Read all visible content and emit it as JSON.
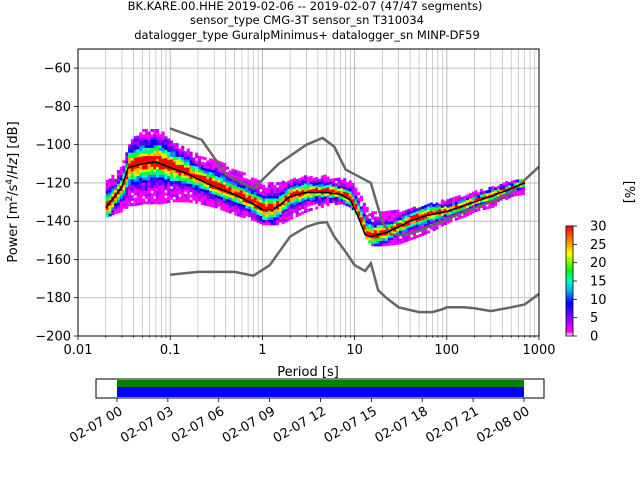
{
  "chart_data": {
    "type": "heatmap",
    "title_lines": [
      "BK.KARE.00.HHE   2019-02-06 -- 2019-02-07  (47/47 segments)",
      "sensor_type CMG-3T sensor_sn T310034",
      "datalogger_type GuralpMinimus+ datalogger_sn MINP-DF59"
    ],
    "xlabel": "Period [s]",
    "ylabel_html": "Power [m<tspan baseline-shift=\"super\" font-size=\"9\">2</tspan>/s<tspan baseline-shift=\"super\" font-size=\"9\">4</tspan>/<tspan font-style=\"italic\">Hz</tspan>] [dB]",
    "x_scale": "log",
    "xlim": [
      0.01,
      1000
    ],
    "ylim": [
      -200,
      -50
    ],
    "grid": true,
    "x_ticks": [
      {
        "v": 0.01,
        "label": "0.01"
      },
      {
        "v": 0.1,
        "label": "0.1"
      },
      {
        "v": 1,
        "label": "1"
      },
      {
        "v": 10,
        "label": "10"
      },
      {
        "v": 100,
        "label": "100"
      },
      {
        "v": 1000,
        "label": "1000"
      }
    ],
    "y_ticks": [
      {
        "v": -60,
        "label": "−60"
      },
      {
        "v": -80,
        "label": "−80"
      },
      {
        "v": -100,
        "label": "−100"
      },
      {
        "v": -120,
        "label": "−120"
      },
      {
        "v": -140,
        "label": "−140"
      },
      {
        "v": -160,
        "label": "−160"
      },
      {
        "v": -180,
        "label": "−180"
      },
      {
        "v": -200,
        "label": "−200"
      }
    ],
    "colorbar": {
      "label": "[%]",
      "range": [
        0,
        30
      ],
      "ticks": [
        {
          "v": 0,
          "label": "0"
        },
        {
          "v": 5,
          "label": "5"
        },
        {
          "v": 10,
          "label": "10"
        },
        {
          "v": 15,
          "label": "15"
        },
        {
          "v": 20,
          "label": "20"
        },
        {
          "v": 25,
          "label": "25"
        },
        {
          "v": 30,
          "label": "30"
        }
      ]
    },
    "noise_model_high": {
      "period": [
        0.1,
        0.22,
        0.4,
        0.8,
        1.5,
        3.0,
        4.5,
        6.0,
        8.0,
        10.0,
        15.0,
        20.0,
        25.0,
        35.0,
        50.0,
        100.0,
        200.0,
        300.0,
        500.0,
        1000.0
      ],
      "power": [
        -91.5,
        -97.5,
        -115.5,
        -123,
        -110,
        -100,
        -96.5,
        -101,
        -113,
        -115.5,
        -120,
        -140.5,
        -147,
        -147,
        -145,
        -139,
        -133,
        -130,
        -125,
        -111.5
      ]
    },
    "noise_model_low": {
      "period": [
        0.1,
        0.2,
        0.5,
        0.8,
        1.2,
        2.0,
        3.0,
        4.0,
        5.0,
        6.0,
        8.0,
        10.0,
        13.0,
        15.0,
        18.0,
        22.0,
        30.0,
        50.0,
        70.0,
        90.0,
        100.0,
        150.0,
        200.0,
        300.0,
        500.0,
        700.0,
        1000.0
      ],
      "power": [
        -168,
        -166.5,
        -166.5,
        -168.5,
        -163,
        -148,
        -143,
        -141,
        -140.5,
        -148,
        -156,
        -163,
        -166,
        -162,
        -176,
        -180,
        -185,
        -187.5,
        -187.5,
        -186,
        -185,
        -185,
        -185.5,
        -187,
        -185,
        -183.5,
        -178
      ]
    },
    "mode_curve": {
      "period": [
        0.02,
        0.025,
        0.03,
        0.035,
        0.05,
        0.07,
        0.1,
        0.15,
        0.2,
        0.3,
        0.5,
        0.8,
        1.0,
        1.3,
        1.6,
        2.0,
        3.0,
        5.0,
        7.0,
        9.0,
        11.0,
        13.0,
        15.0,
        18.0,
        22.0,
        30.0,
        40.0,
        60.0,
        100.0,
        150.0,
        200.0,
        300.0,
        500.0,
        700.0
      ],
      "power": [
        -133,
        -127,
        -122,
        -112,
        -110,
        -109,
        -112,
        -115,
        -118,
        -122,
        -126,
        -131,
        -134,
        -134,
        -131,
        -127,
        -125,
        -125,
        -126,
        -129,
        -138,
        -147,
        -148,
        -147,
        -146,
        -143,
        -140,
        -137,
        -135,
        -132,
        -130,
        -127,
        -123,
        -120
      ]
    },
    "heatmap_band": {
      "period": [
        0.02,
        0.025,
        0.03,
        0.035,
        0.04,
        0.05,
        0.06,
        0.08,
        0.1,
        0.15,
        0.2,
        0.3,
        0.5,
        0.8,
        1.0,
        1.5,
        2.0,
        3.0,
        5.0,
        7.0,
        9.0,
        11.0,
        13.0,
        15.0,
        20.0,
        30.0,
        50.0,
        70.0,
        100.0,
        150.0,
        200.0,
        300.0,
        500.0,
        700.0
      ],
      "upper": [
        -118,
        -115,
        -110,
        -100,
        -96,
        -93,
        -92,
        -94,
        -99,
        -103,
        -106,
        -108,
        -114,
        -118,
        -120,
        -120,
        -119,
        -117,
        -117,
        -118,
        -120,
        -126,
        -133,
        -136,
        -136,
        -135,
        -133,
        -131,
        -129,
        -127,
        -125,
        -123,
        -119,
        -118
      ],
      "lower": [
        -138,
        -136,
        -135,
        -132,
        -132,
        -131,
        -131,
        -131,
        -130,
        -130,
        -131,
        -133,
        -137,
        -140,
        -142,
        -142,
        -139,
        -135,
        -132,
        -131,
        -133,
        -140,
        -149,
        -153,
        -153,
        -152,
        -148,
        -145,
        -141,
        -138,
        -135,
        -133,
        -127,
        -126
      ]
    },
    "timeline": {
      "tick_labels": [
        "02-07 00",
        "02-07 03",
        "02-07 06",
        "02-07 09",
        "02-07 12",
        "02-07 15",
        "02-07 18",
        "02-07 21",
        "02-08 00"
      ],
      "colors": {
        "available": "#008000",
        "used": "#0000ff"
      }
    }
  }
}
